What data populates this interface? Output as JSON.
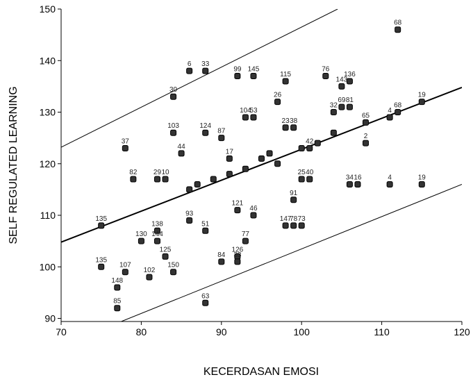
{
  "chart_data": {
    "type": "scatter",
    "x_label": "KECERDASAN EMOSI",
    "y_label": "SELF REGULATED LEARNING",
    "xlim": [
      70,
      120
    ],
    "ylim": [
      89.4,
      150
    ],
    "xticks": [
      70,
      80,
      90,
      100,
      110,
      120
    ],
    "yticks": [
      90,
      100,
      110,
      120,
      130,
      140,
      150
    ],
    "color": "#333333",
    "x": [
      112,
      86,
      88,
      92,
      94,
      98,
      103,
      105,
      106,
      84,
      97,
      111,
      112,
      115,
      108,
      88,
      84,
      78,
      90,
      93,
      94,
      98,
      99,
      104,
      105,
      106,
      101,
      108,
      85,
      91,
      79,
      82,
      83,
      106,
      107,
      111,
      115,
      100,
      101,
      99,
      75,
      80,
      82,
      82,
      86,
      88,
      92,
      94,
      98,
      99,
      100,
      83,
      93,
      90,
      92,
      92,
      75,
      78,
      77,
      81,
      84,
      77,
      88,
      86,
      87,
      89,
      91,
      93,
      95,
      96,
      97,
      100,
      102,
      104
    ],
    "values": [
      146,
      138,
      138,
      137,
      137,
      136,
      137,
      135,
      136,
      133,
      132,
      129,
      130,
      132,
      128,
      126,
      126,
      123,
      125,
      129,
      129,
      127,
      127,
      130,
      131,
      131,
      123,
      124,
      122,
      121,
      117,
      117,
      117,
      116,
      116,
      116,
      116,
      117,
      117,
      113,
      108,
      105,
      107,
      105,
      109,
      107,
      111,
      110,
      108,
      108,
      108,
      102,
      105,
      101,
      102,
      101,
      100,
      99,
      96,
      98,
      99,
      92,
      93,
      115,
      116,
      117,
      118,
      119,
      121,
      122,
      120,
      123,
      124,
      126
    ],
    "labels": [
      "68",
      "6",
      "33",
      "99",
      "145",
      "115",
      "76",
      "143",
      "136",
      "30",
      "26",
      "4",
      "68",
      "19",
      "65",
      "124",
      "103",
      "37",
      "87",
      "104",
      "53",
      "23",
      "38",
      "32",
      "69",
      "81",
      "42",
      "2",
      "44",
      "17",
      "82",
      "29",
      "10",
      "34",
      "16",
      "4",
      "19",
      "25",
      "40",
      "91",
      "135",
      "130",
      "138",
      "144",
      "93",
      "51",
      "121",
      "46",
      "147",
      "78",
      "73",
      "125",
      "77",
      "84",
      "126",
      "33",
      "135",
      "107",
      "148",
      "102",
      "150",
      "85",
      "63",
      null,
      null,
      null,
      null,
      null,
      null,
      null,
      null,
      null,
      null,
      null
    ],
    "fit_lines": [
      {
        "x": [
          70,
          120
        ],
        "y": [
          104.8,
          134.8
        ]
      },
      {
        "x": [
          70,
          104.5
        ],
        "y": [
          123.2,
          150
        ]
      },
      {
        "x": [
          77.5,
          120
        ],
        "y": [
          89.4,
          116
        ]
      }
    ]
  }
}
